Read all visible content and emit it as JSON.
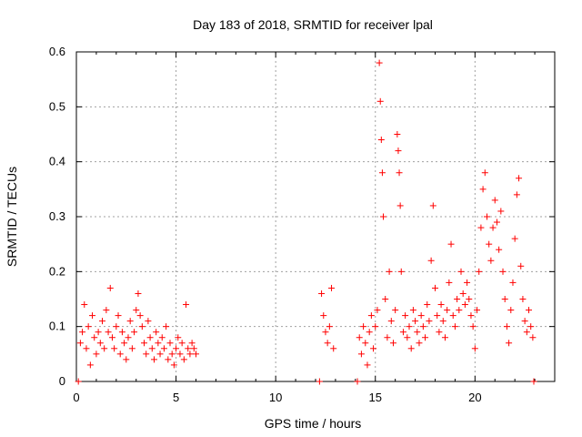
{
  "chart_data": {
    "type": "scatter",
    "title": "Day 183 of 2018, SRMTID for receiver lpal",
    "xlabel": "GPS time / hours",
    "ylabel": "SRMTID / TECUs",
    "xlim": [
      0,
      24
    ],
    "ylim": [
      0,
      0.6
    ],
    "x_ticks": [
      0,
      5,
      10,
      15,
      20
    ],
    "y_ticks": [
      0,
      0.1,
      0.2,
      0.3,
      0.4,
      0.5,
      0.6
    ],
    "x_tick_labels": [
      "0",
      "5",
      "10",
      "15",
      "20"
    ],
    "y_tick_labels": [
      "0",
      "0.1",
      "0.2",
      "0.3",
      "0.4",
      "0.5",
      "0.6"
    ],
    "grid": true,
    "marker": "+",
    "series": [
      {
        "name": "SRMTID",
        "color": "#ff0000",
        "points": [
          [
            0.1,
            0.0
          ],
          [
            0.2,
            0.07
          ],
          [
            0.3,
            0.09
          ],
          [
            0.4,
            0.14
          ],
          [
            0.5,
            0.06
          ],
          [
            0.6,
            0.1
          ],
          [
            0.7,
            0.03
          ],
          [
            0.8,
            0.12
          ],
          [
            0.9,
            0.08
          ],
          [
            1.0,
            0.05
          ],
          [
            1.1,
            0.09
          ],
          [
            1.2,
            0.07
          ],
          [
            1.3,
            0.11
          ],
          [
            1.4,
            0.06
          ],
          [
            1.5,
            0.13
          ],
          [
            1.6,
            0.09
          ],
          [
            1.7,
            0.17
          ],
          [
            1.8,
            0.08
          ],
          [
            1.9,
            0.06
          ],
          [
            2.0,
            0.1
          ],
          [
            2.1,
            0.12
          ],
          [
            2.2,
            0.05
          ],
          [
            2.3,
            0.09
          ],
          [
            2.4,
            0.07
          ],
          [
            2.5,
            0.04
          ],
          [
            2.6,
            0.08
          ],
          [
            2.7,
            0.11
          ],
          [
            2.8,
            0.06
          ],
          [
            2.9,
            0.09
          ],
          [
            3.0,
            0.13
          ],
          [
            3.1,
            0.16
          ],
          [
            3.2,
            0.12
          ],
          [
            3.3,
            0.1
          ],
          [
            3.4,
            0.07
          ],
          [
            3.5,
            0.05
          ],
          [
            3.6,
            0.11
          ],
          [
            3.7,
            0.08
          ],
          [
            3.8,
            0.06
          ],
          [
            3.9,
            0.04
          ],
          [
            4.0,
            0.09
          ],
          [
            4.1,
            0.07
          ],
          [
            4.2,
            0.05
          ],
          [
            4.3,
            0.08
          ],
          [
            4.4,
            0.06
          ],
          [
            4.5,
            0.1
          ],
          [
            4.6,
            0.04
          ],
          [
            4.7,
            0.07
          ],
          [
            4.8,
            0.05
          ],
          [
            4.9,
            0.03
          ],
          [
            5.0,
            0.06
          ],
          [
            5.1,
            0.08
          ],
          [
            5.2,
            0.05
          ],
          [
            5.3,
            0.07
          ],
          [
            5.4,
            0.04
          ],
          [
            5.5,
            0.14
          ],
          [
            5.6,
            0.06
          ],
          [
            5.7,
            0.05
          ],
          [
            5.8,
            0.07
          ],
          [
            5.9,
            0.06
          ],
          [
            6.0,
            0.05
          ],
          [
            12.2,
            0.0
          ],
          [
            12.3,
            0.16
          ],
          [
            12.4,
            0.12
          ],
          [
            12.5,
            0.09
          ],
          [
            12.6,
            0.07
          ],
          [
            12.7,
            0.1
          ],
          [
            12.8,
            0.17
          ],
          [
            12.9,
            0.06
          ],
          [
            14.1,
            0.0
          ],
          [
            14.2,
            0.08
          ],
          [
            14.3,
            0.05
          ],
          [
            14.4,
            0.1
          ],
          [
            14.5,
            0.07
          ],
          [
            14.6,
            0.03
          ],
          [
            14.7,
            0.09
          ],
          [
            14.8,
            0.12
          ],
          [
            14.9,
            0.06
          ],
          [
            15.0,
            0.1
          ],
          [
            15.1,
            0.13
          ],
          [
            15.2,
            0.58
          ],
          [
            15.25,
            0.51
          ],
          [
            15.3,
            0.44
          ],
          [
            15.35,
            0.38
          ],
          [
            15.4,
            0.3
          ],
          [
            15.5,
            0.15
          ],
          [
            15.6,
            0.08
          ],
          [
            15.7,
            0.2
          ],
          [
            15.8,
            0.11
          ],
          [
            15.9,
            0.07
          ],
          [
            16.0,
            0.13
          ],
          [
            16.1,
            0.45
          ],
          [
            16.15,
            0.42
          ],
          [
            16.2,
            0.38
          ],
          [
            16.25,
            0.32
          ],
          [
            16.3,
            0.2
          ],
          [
            16.4,
            0.09
          ],
          [
            16.5,
            0.12
          ],
          [
            16.6,
            0.08
          ],
          [
            16.7,
            0.1
          ],
          [
            16.8,
            0.06
          ],
          [
            16.9,
            0.13
          ],
          [
            17.0,
            0.11
          ],
          [
            17.1,
            0.09
          ],
          [
            17.2,
            0.07
          ],
          [
            17.3,
            0.12
          ],
          [
            17.4,
            0.1
          ],
          [
            17.5,
            0.08
          ],
          [
            17.6,
            0.14
          ],
          [
            17.7,
            0.11
          ],
          [
            17.8,
            0.22
          ],
          [
            17.9,
            0.32
          ],
          [
            18.0,
            0.17
          ],
          [
            18.1,
            0.12
          ],
          [
            18.2,
            0.09
          ],
          [
            18.3,
            0.14
          ],
          [
            18.4,
            0.11
          ],
          [
            18.5,
            0.08
          ],
          [
            18.6,
            0.13
          ],
          [
            18.7,
            0.18
          ],
          [
            18.8,
            0.25
          ],
          [
            18.9,
            0.12
          ],
          [
            19.0,
            0.1
          ],
          [
            19.1,
            0.15
          ],
          [
            19.2,
            0.13
          ],
          [
            19.3,
            0.2
          ],
          [
            19.4,
            0.16
          ],
          [
            19.5,
            0.14
          ],
          [
            19.6,
            0.18
          ],
          [
            19.7,
            0.15
          ],
          [
            19.8,
            0.12
          ],
          [
            19.9,
            0.1
          ],
          [
            20.0,
            0.06
          ],
          [
            20.1,
            0.13
          ],
          [
            20.2,
            0.2
          ],
          [
            20.3,
            0.28
          ],
          [
            20.4,
            0.35
          ],
          [
            20.5,
            0.38
          ],
          [
            20.6,
            0.3
          ],
          [
            20.7,
            0.25
          ],
          [
            20.8,
            0.22
          ],
          [
            20.9,
            0.28
          ],
          [
            21.0,
            0.33
          ],
          [
            21.1,
            0.29
          ],
          [
            21.2,
            0.24
          ],
          [
            21.3,
            0.31
          ],
          [
            21.4,
            0.2
          ],
          [
            21.5,
            0.15
          ],
          [
            21.6,
            0.1
          ],
          [
            21.7,
            0.07
          ],
          [
            21.8,
            0.13
          ],
          [
            21.9,
            0.18
          ],
          [
            22.0,
            0.26
          ],
          [
            22.1,
            0.34
          ],
          [
            22.2,
            0.37
          ],
          [
            22.3,
            0.21
          ],
          [
            22.4,
            0.15
          ],
          [
            22.5,
            0.11
          ],
          [
            22.6,
            0.09
          ],
          [
            22.7,
            0.13
          ],
          [
            22.8,
            0.1
          ],
          [
            22.9,
            0.08
          ],
          [
            22.95,
            0.0
          ]
        ]
      }
    ]
  }
}
